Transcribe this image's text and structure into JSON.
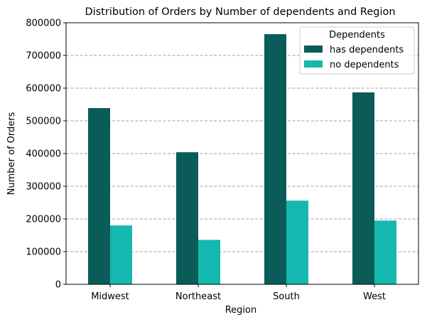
{
  "chart_data": {
    "type": "bar",
    "title": "Distribution of Orders by Number of dependents and Region",
    "xlabel": "Region",
    "ylabel": "Number of Orders",
    "categories": [
      "Midwest",
      "Northeast",
      "South",
      "West"
    ],
    "series": [
      {
        "name": "has dependents",
        "color": "#0a5c58",
        "values": [
          539000,
          404000,
          765000,
          587000
        ]
      },
      {
        "name": "no dependents",
        "color": "#14b8b0",
        "values": [
          180000,
          136000,
          256000,
          195000
        ]
      }
    ],
    "ylim": [
      0,
      800000
    ],
    "yticks": [
      0,
      100000,
      200000,
      300000,
      400000,
      500000,
      600000,
      700000,
      800000
    ],
    "ytick_labels": [
      "0",
      "100000",
      "200000",
      "300000",
      "400000",
      "500000",
      "600000",
      "700000",
      "800000"
    ],
    "grid": {
      "axis": "y",
      "style": "dashed",
      "color": "#808080"
    },
    "legend": {
      "title": "Dependents",
      "placement": "top-right"
    }
  }
}
